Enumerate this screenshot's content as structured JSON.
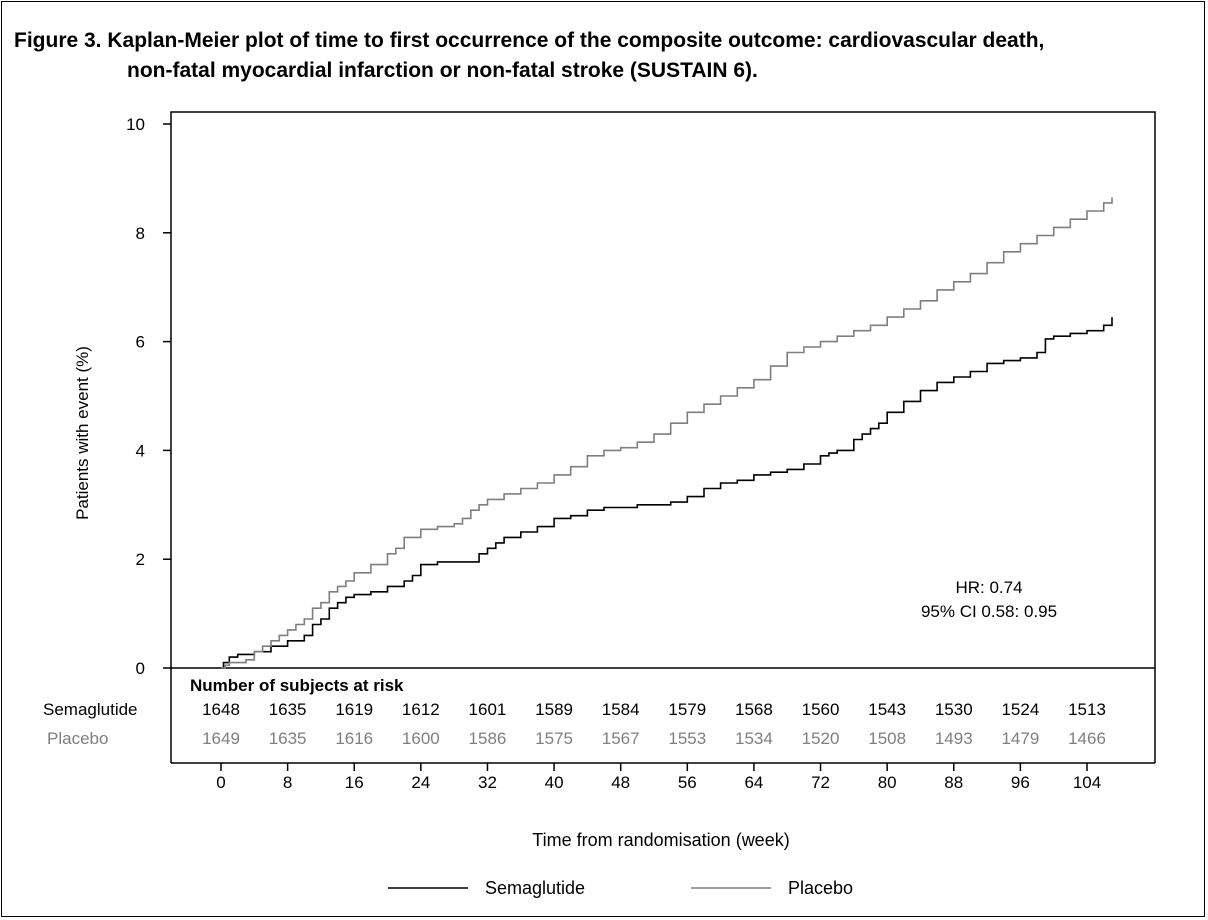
{
  "figure": {
    "title_line1": "Figure 3. Kaplan-Meier plot of time to first occurrence of the composite outcome: cardiovascular death,",
    "title_line2": "non-fatal myocardial infarction or non-fatal stroke (SUSTAIN 6)."
  },
  "colors": {
    "semaglutide": "#000000",
    "placebo": "#7f7f7f"
  },
  "chart_data": {
    "type": "line",
    "subtype": "kaplan-meier",
    "xlabel": "Time from randomisation (week)",
    "ylabel": "Patients with event (%)",
    "ylim": [
      0,
      10
    ],
    "y_ticks": [
      0,
      2,
      4,
      6,
      8,
      10
    ],
    "xlim": [
      -6,
      110
    ],
    "x_ticks": [
      0,
      8,
      16,
      24,
      32,
      40,
      48,
      56,
      64,
      72,
      80,
      88,
      96,
      104
    ],
    "annotation": {
      "hr": "HR: 0.74",
      "ci": "95% CI 0.58: 0.95"
    },
    "risk_table": {
      "heading": "Number of subjects at risk",
      "rows": [
        {
          "name": "Semaglutide",
          "color": "#000000",
          "values": [
            1648,
            1635,
            1619,
            1612,
            1601,
            1589,
            1584,
            1579,
            1568,
            1560,
            1543,
            1530,
            1524,
            1513
          ]
        },
        {
          "name": "Placebo",
          "color": "#7f7f7f",
          "values": [
            1649,
            1635,
            1616,
            1600,
            1586,
            1575,
            1567,
            1553,
            1534,
            1520,
            1508,
            1493,
            1479,
            1466
          ]
        }
      ]
    },
    "legend": {
      "placement": "bottom-center",
      "entries": [
        "Semaglutide",
        "Placebo"
      ]
    },
    "series": [
      {
        "name": "Semaglutide",
        "color": "#000000",
        "x": [
          0,
          0.3,
          1,
          2,
          4,
          6,
          7,
          8,
          9,
          10,
          11,
          12,
          13,
          14,
          15,
          16,
          18,
          20,
          22,
          23,
          24,
          26,
          28,
          30,
          31,
          32,
          33,
          34,
          36,
          38,
          40,
          42,
          44,
          46,
          50,
          54,
          56,
          58,
          60,
          62,
          64,
          66,
          68,
          70,
          72,
          73,
          74,
          76,
          77,
          78,
          79,
          80,
          82,
          84,
          86,
          88,
          90,
          92,
          94,
          96,
          98,
          99,
          100,
          102,
          104,
          106,
          107
        ],
        "y": [
          0,
          0.1,
          0.2,
          0.25,
          0.3,
          0.4,
          0.4,
          0.5,
          0.5,
          0.6,
          0.8,
          0.9,
          1.1,
          1.2,
          1.3,
          1.35,
          1.4,
          1.5,
          1.6,
          1.7,
          1.9,
          1.95,
          1.95,
          1.95,
          2.1,
          2.2,
          2.3,
          2.4,
          2.5,
          2.6,
          2.75,
          2.8,
          2.9,
          2.95,
          3.0,
          3.05,
          3.15,
          3.3,
          3.4,
          3.45,
          3.55,
          3.6,
          3.65,
          3.75,
          3.9,
          3.95,
          4.0,
          4.2,
          4.3,
          4.4,
          4.5,
          4.7,
          4.9,
          5.1,
          5.25,
          5.35,
          5.45,
          5.6,
          5.65,
          5.7,
          5.8,
          6.05,
          6.1,
          6.15,
          6.2,
          6.3,
          6.45
        ]
      },
      {
        "name": "Placebo",
        "color": "#7f7f7f",
        "x": [
          0,
          0.5,
          1,
          3,
          4,
          5,
          6,
          7,
          8,
          9,
          10,
          11,
          12,
          13,
          14,
          15,
          16,
          18,
          20,
          21,
          22,
          24,
          26,
          28,
          29,
          30,
          31,
          32,
          34,
          36,
          38,
          40,
          42,
          44,
          46,
          48,
          50,
          52,
          54,
          56,
          58,
          60,
          62,
          64,
          66,
          68,
          70,
          72,
          74,
          76,
          78,
          80,
          82,
          84,
          86,
          88,
          90,
          92,
          94,
          96,
          98,
          100,
          102,
          104,
          106,
          107
        ],
        "y": [
          0,
          0.05,
          0.1,
          0.15,
          0.3,
          0.4,
          0.5,
          0.6,
          0.7,
          0.8,
          0.9,
          1.1,
          1.2,
          1.4,
          1.5,
          1.6,
          1.75,
          1.9,
          2.1,
          2.2,
          2.4,
          2.55,
          2.6,
          2.65,
          2.75,
          2.9,
          3.0,
          3.1,
          3.2,
          3.3,
          3.4,
          3.55,
          3.7,
          3.9,
          4.0,
          4.05,
          4.15,
          4.3,
          4.5,
          4.7,
          4.85,
          5.0,
          5.15,
          5.3,
          5.55,
          5.8,
          5.9,
          6.0,
          6.1,
          6.2,
          6.3,
          6.45,
          6.6,
          6.75,
          6.95,
          7.1,
          7.25,
          7.45,
          7.65,
          7.8,
          7.95,
          8.1,
          8.25,
          8.4,
          8.55,
          8.65
        ]
      }
    ]
  }
}
